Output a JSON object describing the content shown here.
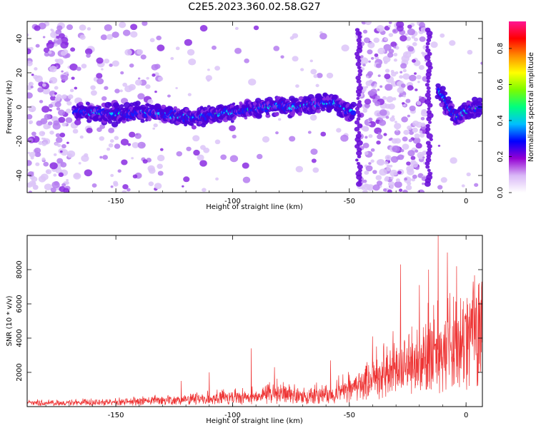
{
  "figure": {
    "title": "C2E5.2023.360.02.58.G27"
  },
  "chart_data": [
    {
      "type": "heatmap",
      "xlabel": "Height of straight line (km)",
      "ylabel": "Frequency (Hz)",
      "xlim": [
        -188,
        7
      ],
      "ylim": [
        -50,
        50
      ],
      "xticks": [
        "-150",
        "-100",
        "-50",
        "0"
      ],
      "yticks": [
        "-40",
        "-20",
        "0",
        "20",
        "40"
      ],
      "colorbar": {
        "label": "Normalized spectral amplitude",
        "range": [
          0,
          0.95
        ],
        "ticks": [
          "0.0",
          "0.2",
          "0.4",
          "0.6",
          "0.8"
        ],
        "colors": [
          "#ffffff",
          "#d9b8f7",
          "#9400d3",
          "#0000ff",
          "#00bfff",
          "#00ff7f",
          "#7cfc00",
          "#ffff00",
          "#ff8c00",
          "#ff0000",
          "#ff1493"
        ]
      },
      "ridge": {
        "x": [
          -165,
          -150,
          -135,
          -120,
          -112,
          -100,
          -90,
          -80,
          -75,
          -65,
          -55,
          -50,
          -45,
          -15,
          -12,
          -8,
          -4,
          0,
          5
        ],
        "y": [
          -3,
          -4,
          -3,
          -6,
          -5,
          -3,
          -1,
          1,
          0,
          2,
          2,
          -3,
          -3,
          6,
          10,
          1,
          -6,
          -2,
          0
        ]
      }
    },
    {
      "type": "line",
      "xlabel": "Height of straight line (km)",
      "ylabel": "SNR (10 * v/v)",
      "xlim": [
        -188,
        7
      ],
      "ylim": [
        0,
        10000
      ],
      "xticks": [
        "-150",
        "-100",
        "-50",
        "0"
      ],
      "yticks": [
        "2000",
        "4000",
        "6000",
        "8000"
      ],
      "color": "#ee3333",
      "envelope": {
        "x": [
          -188,
          -170,
          -150,
          -130,
          -110,
          -90,
          -80,
          -70,
          -60,
          -50,
          -40,
          -30,
          -20,
          -15,
          -10,
          -5,
          0,
          7
        ],
        "y": [
          300,
          300,
          350,
          500,
          650,
          800,
          1100,
          900,
          1000,
          1400,
          2300,
          3000,
          4000,
          4200,
          4700,
          5100,
          5600,
          6200
        ]
      },
      "peaks": [
        {
          "x": -122,
          "y": 1500
        },
        {
          "x": -110,
          "y": 2000
        },
        {
          "x": -92,
          "y": 3400
        },
        {
          "x": -82,
          "y": 2300
        },
        {
          "x": -58,
          "y": 2700
        },
        {
          "x": -40,
          "y": 4100
        },
        {
          "x": -28,
          "y": 8300
        },
        {
          "x": -20,
          "y": 7100
        },
        {
          "x": -16,
          "y": 8000
        },
        {
          "x": -12,
          "y": 10000
        },
        {
          "x": -8,
          "y": 9000
        },
        {
          "x": -4,
          "y": 8200
        },
        {
          "x": 3,
          "y": 7300
        }
      ]
    }
  ]
}
